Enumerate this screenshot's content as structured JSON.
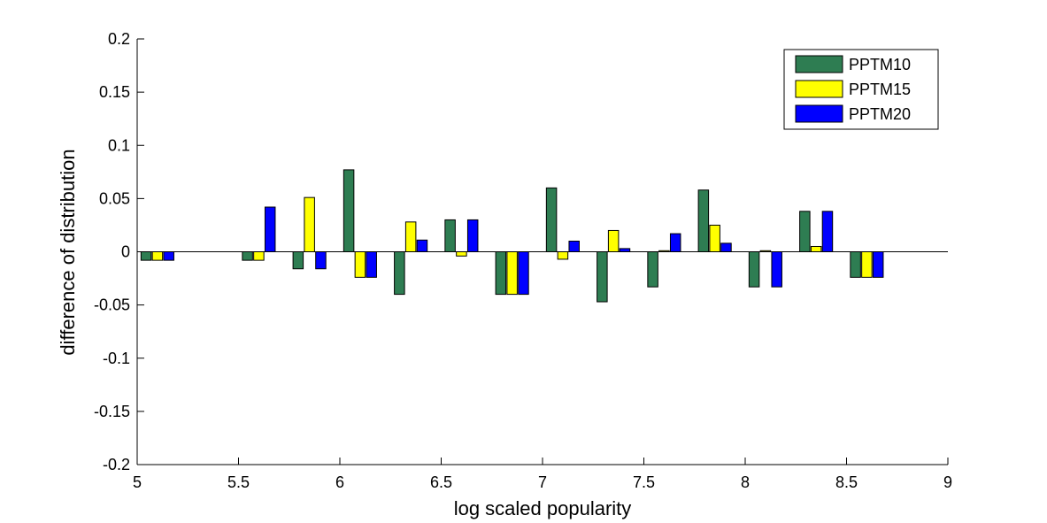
{
  "chart_data": {
    "type": "bar",
    "title": "",
    "xlabel": "log scaled popularity",
    "ylabel": "difference of distribution",
    "xlim": [
      5,
      9
    ],
    "ylim": [
      -0.2,
      0.2
    ],
    "xticks": [
      5,
      5.5,
      6,
      6.5,
      7,
      7.5,
      8,
      8.5,
      9
    ],
    "xtick_labels": [
      "5",
      "5.5",
      "6",
      "6.5",
      "7",
      "7.5",
      "8",
      "8.5",
      "9"
    ],
    "yticks": [
      -0.2,
      -0.15,
      -0.1,
      -0.05,
      0,
      0.05,
      0.1,
      0.15,
      0.2
    ],
    "ytick_labels": [
      "-0.2",
      "-0.15",
      "-0.1",
      "-0.05",
      "0",
      "0.05",
      "0.1",
      "0.15",
      "0.2"
    ],
    "grid": false,
    "legend_position": "top-right",
    "categories": [
      5.1,
      5.6,
      5.85,
      6.1,
      6.35,
      6.6,
      6.85,
      7.1,
      7.35,
      7.6,
      7.85,
      8.1,
      8.35,
      8.6
    ],
    "series": [
      {
        "name": "PPTM10",
        "color": "#2e7d52",
        "values": [
          -0.008,
          -0.008,
          -0.016,
          0.077,
          -0.04,
          0.03,
          -0.04,
          0.06,
          -0.047,
          -0.033,
          0.058,
          -0.033,
          0.038,
          -0.024
        ]
      },
      {
        "name": "PPTM15",
        "color": "#ffff00",
        "values": [
          -0.008,
          -0.008,
          0.051,
          -0.024,
          0.028,
          -0.004,
          -0.04,
          -0.007,
          0.02,
          0.001,
          0.025,
          0.001,
          0.005,
          -0.024
        ]
      },
      {
        "name": "PPTM20",
        "color": "#0000ff",
        "values": [
          -0.008,
          0.042,
          -0.016,
          -0.024,
          0.011,
          0.03,
          -0.04,
          0.01,
          0.003,
          0.017,
          0.008,
          -0.033,
          0.038,
          -0.024
        ]
      }
    ]
  }
}
